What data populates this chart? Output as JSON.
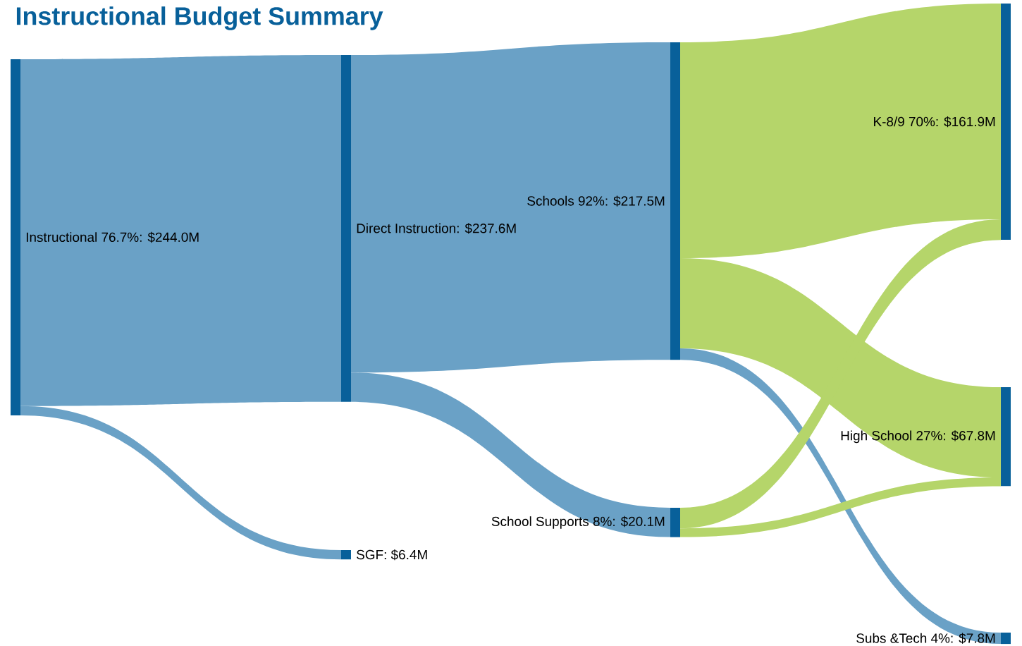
{
  "chart_data": {
    "type": "other",
    "title": "Instructional Budget Summary",
    "categories": [
      "Instructional 76.7%",
      "Direct Instruction",
      "SGF",
      "Schools 92%",
      "School Supports 8%",
      "K-8/9 70%",
      "High School 27%",
      "Subs &Tech 4%"
    ],
    "values": [
      244.0,
      237.6,
      6.4,
      217.5,
      20.1,
      161.9,
      67.8,
      7.8
    ],
    "value_labels": [
      ": $244.0M",
      ": $237.6M",
      ": $6.4M",
      ": $217.5M",
      ": $20.1M",
      ": $161.9M",
      ": $67.8M",
      ": $7.8M"
    ],
    "color": "#08609a",
    "colors": [
      "#6aa1c6",
      "#6aa1c6",
      "#6aa1c6",
      "#6aa1c6",
      "#6aa1c6",
      "#b5d56a",
      "#b5d56a",
      "#6aa1c6"
    ]
  }
}
